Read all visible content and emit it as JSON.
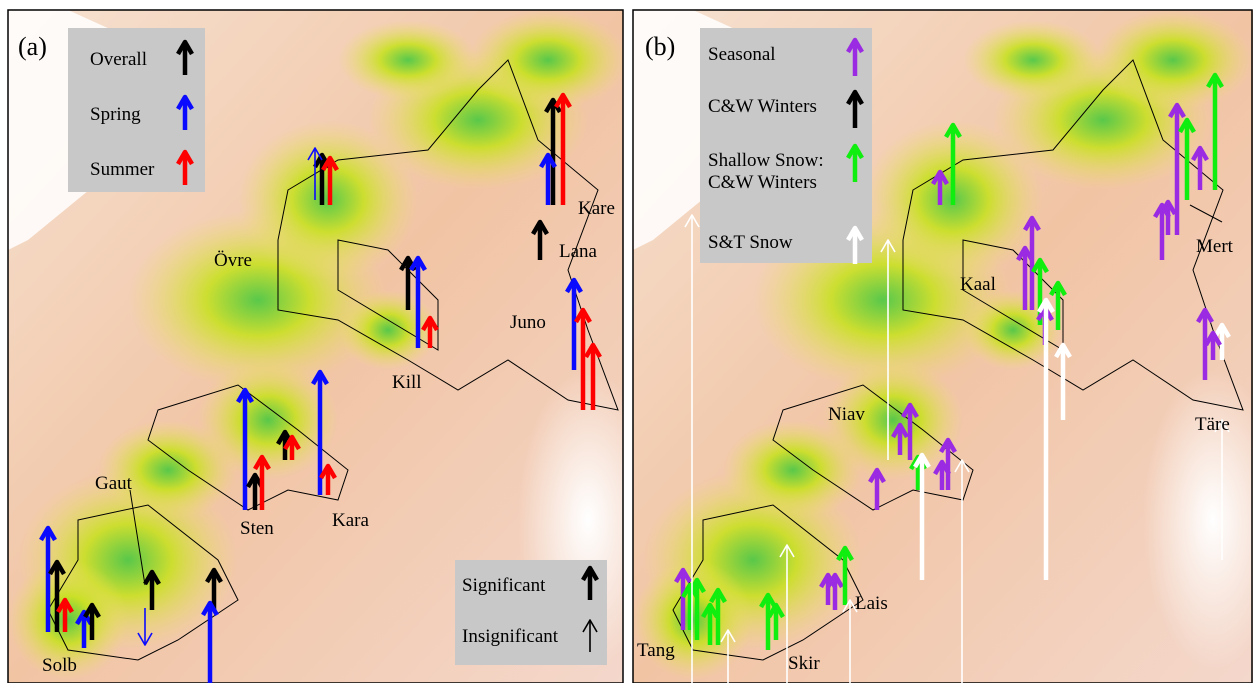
{
  "panels": [
    {
      "label": "(a)",
      "legend": [
        {
          "text": "Overall",
          "color": "#000000"
        },
        {
          "text": "Spring",
          "color": "#0a0aff"
        },
        {
          "text": "Summer",
          "color": "#ff0000"
        }
      ],
      "places": [
        "Övre",
        "Kill",
        "Kare",
        "Lana",
        "Juno",
        "Gaut",
        "Sten",
        "Kara",
        "Solb"
      ],
      "significance_legend": [
        "Significant",
        "Insignificant"
      ]
    },
    {
      "label": "(b)",
      "legend": [
        {
          "text": "Seasonal",
          "color": "#9a2be2"
        },
        {
          "text": "C&W Winters",
          "color": "#000000"
        },
        {
          "text": "Shallow Snow: C&W Winters",
          "color": "#10ee10"
        },
        {
          "text": "S&T Snow",
          "color": "#ffffff"
        }
      ],
      "places": [
        "Kaal",
        "Mert",
        "Niav",
        "Täre",
        "Lais",
        "Tang",
        "Skir"
      ]
    }
  ]
}
